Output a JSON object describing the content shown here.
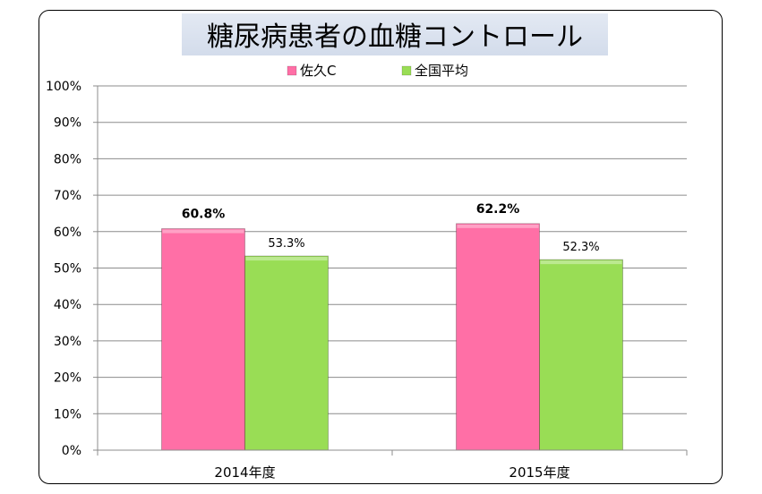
{
  "chart_data": {
    "type": "bar",
    "title": "糖尿病患者の血糖コントロール",
    "categories": [
      "2014年度",
      "2015年度"
    ],
    "series": [
      {
        "name": "佐久C",
        "values": [
          60.8,
          62.2
        ],
        "labels": [
          "60.8%",
          "62.2%"
        ],
        "color": "#ff6fa6",
        "label_bold": true
      },
      {
        "name": "全国平均",
        "values": [
          53.3,
          52.3
        ],
        "labels": [
          "53.3%",
          "52.3%"
        ],
        "color": "#99dd55",
        "label_bold": false
      }
    ],
    "ylim": [
      0,
      100
    ],
    "yticks": [
      "0%",
      "10%",
      "20%",
      "30%",
      "40%",
      "50%",
      "60%",
      "70%",
      "80%",
      "90%",
      "100%"
    ],
    "grid": true,
    "legend_position": "top"
  }
}
